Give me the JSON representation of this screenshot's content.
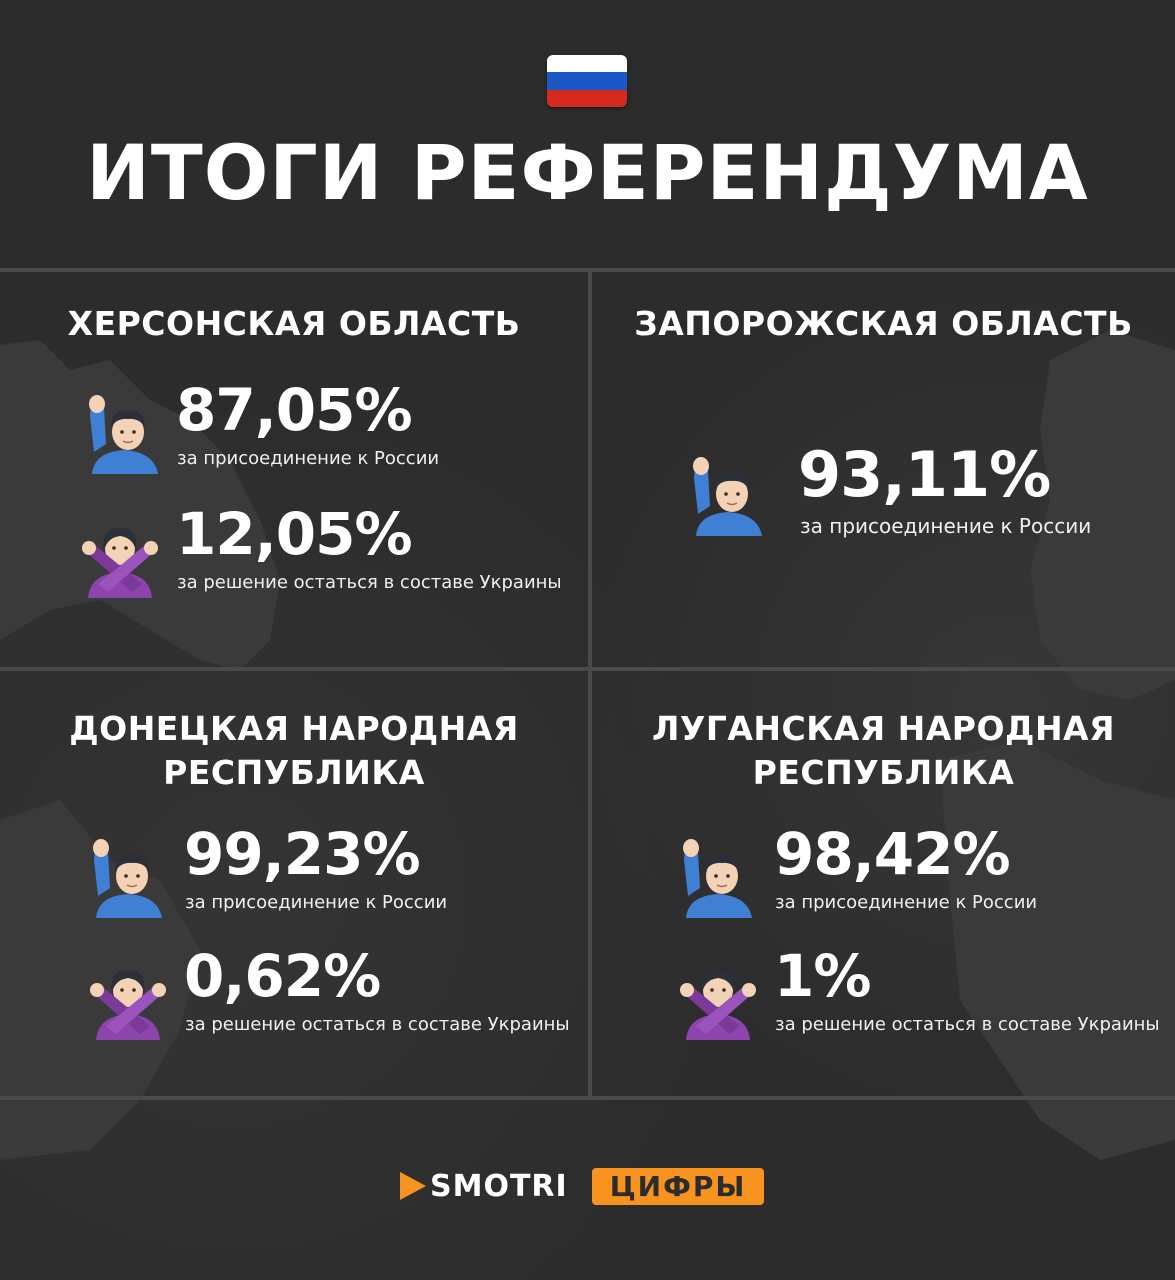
{
  "header": {
    "flag_colors": [
      "#ffffff",
      "#1c57c7",
      "#d52b1e"
    ],
    "title": "ИТОГИ РЕФЕРЕНДУМА"
  },
  "regions": [
    {
      "name": "ХЕРСОНСКАЯ ОБЛАСТЬ",
      "stats": [
        {
          "icon": "raising-hand-man-icon",
          "value": "87,05%",
          "caption": "за присоединение к России"
        },
        {
          "icon": "gesturing-no-woman-icon",
          "value": "12,05%",
          "caption": "за решение остаться в составе Украины"
        }
      ]
    },
    {
      "name": "ЗАПОРОЖСКАЯ ОБЛАСТЬ",
      "stats": [
        {
          "icon": "raising-hand-man-icon",
          "value": "93,11%",
          "caption": "за присоединение к России"
        }
      ]
    },
    {
      "name_line1": "ДОНЕЦКАЯ НАРОДНАЯ",
      "name_line2": "РЕСПУБЛИКА",
      "stats": [
        {
          "icon": "raising-hand-man-icon",
          "value": "99,23%",
          "caption": "за присоединение к России"
        },
        {
          "icon": "gesturing-no-woman-icon",
          "value": "0,62%",
          "caption": "за решение остаться в составе Украины"
        }
      ]
    },
    {
      "name_line1": "ЛУГАНСКАЯ НАРОДНАЯ",
      "name_line2": "РЕСПУБЛИКА",
      "stats": [
        {
          "icon": "raising-hand-man-icon",
          "value": "98,42%",
          "caption": "за присоединение к России"
        },
        {
          "icon": "gesturing-no-woman-icon",
          "value": "1%",
          "caption": "за решение остаться в составе Украины"
        }
      ]
    }
  ],
  "footer": {
    "brand": "SMOTRI",
    "tag": "ЦИФРЫ",
    "accent": "#f7931e"
  }
}
